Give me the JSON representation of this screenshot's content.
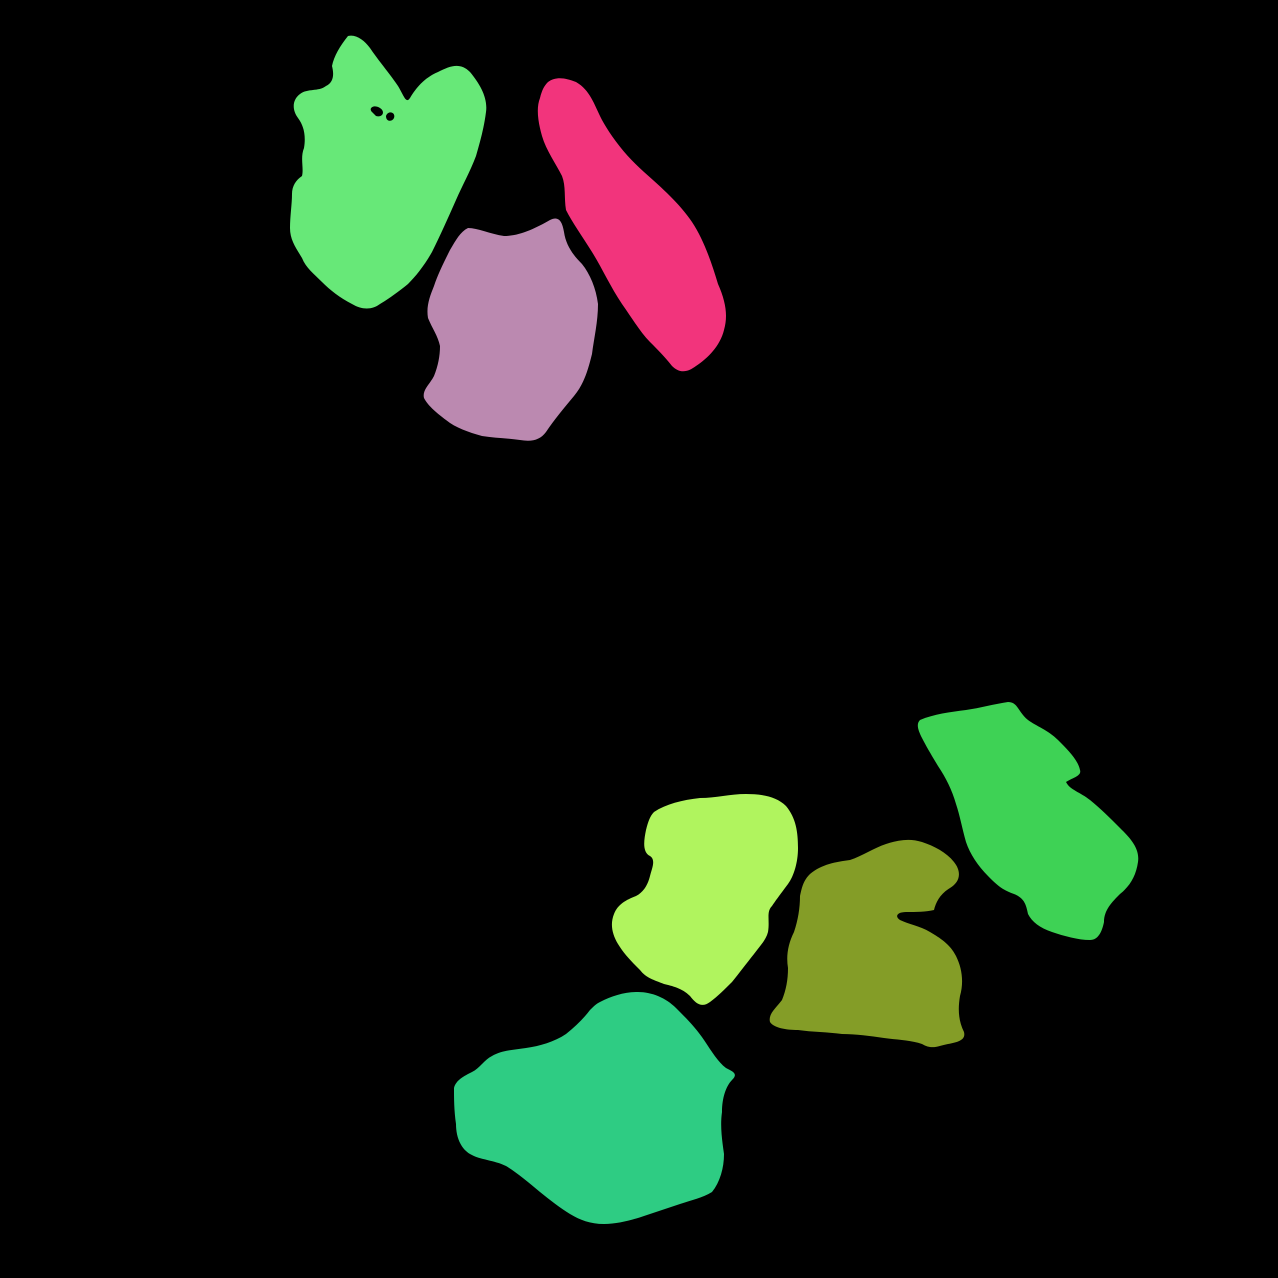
{
  "background": "#000000",
  "regions": [
    {
      "name": "segment-light-green-top",
      "color": "#67E878"
    },
    {
      "name": "segment-pink",
      "color": "#F2347C"
    },
    {
      "name": "segment-mauve",
      "color": "#BB89B0"
    },
    {
      "name": "segment-green-right",
      "color": "#3ED255"
    },
    {
      "name": "segment-lime",
      "color": "#B0F45E"
    },
    {
      "name": "segment-olive",
      "color": "#849D27"
    },
    {
      "name": "segment-teal-green",
      "color": "#2ECC83"
    }
  ]
}
